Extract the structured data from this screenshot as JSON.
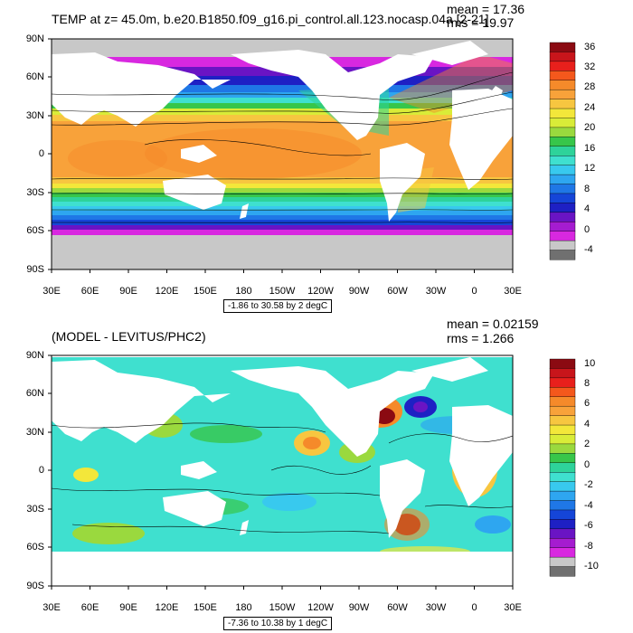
{
  "panels": [
    {
      "title": "TEMP at z=  45.0m, b.e20.B1850.f09_g16.pi_control.all.123.nocasp.04a [2-21]",
      "mean_text": "mean = 17.36",
      "rms_text": "rms = 19.97",
      "range_text": "-1.86 to 30.58 by 2 degC",
      "lat_labels": [
        "90N",
        "60N",
        "30N",
        "0",
        "30S",
        "60S",
        "90S"
      ],
      "lon_labels": [
        "30E",
        "60E",
        "90E",
        "120E",
        "150E",
        "180",
        "150W",
        "120W",
        "90W",
        "60W",
        "30W",
        "0",
        "30E"
      ],
      "colorbar": {
        "labels": [
          "36",
          "32",
          "28",
          "24",
          "20",
          "16",
          "12",
          "8",
          "4",
          "0",
          "-4"
        ],
        "colors": [
          "#8b0a12",
          "#c8151b",
          "#e8201c",
          "#f4581c",
          "#f58a2a",
          "#f8a23a",
          "#f7c640",
          "#f3e73a",
          "#d9ec38",
          "#9ad93e",
          "#37c64a",
          "#2ed39a",
          "#3fe0cf",
          "#38c9ee",
          "#2ea6f0",
          "#1f77e6",
          "#1545d8",
          "#1e20c4",
          "#6a14c4",
          "#a51cd0",
          "#d828e0",
          "#c8c8c8",
          "#707070"
        ]
      }
    },
    {
      "title": "(MODEL - LEVITUS/PHC2)",
      "mean_text": "mean = 0.02159",
      "rms_text": "rms = 1.266",
      "range_text": "-7.36 to 10.38 by 1 degC",
      "lat_labels": [
        "90N",
        "60N",
        "30N",
        "0",
        "30S",
        "60S",
        "90S"
      ],
      "lon_labels": [
        "30E",
        "60E",
        "90E",
        "120E",
        "150E",
        "180",
        "150W",
        "120W",
        "90W",
        "60W",
        "30W",
        "0",
        "30E"
      ],
      "colorbar": {
        "labels": [
          "10",
          "8",
          "6",
          "4",
          "2",
          "0",
          "-2",
          "-4",
          "-6",
          "-8",
          "-10"
        ],
        "colors": [
          "#8b0a12",
          "#c8151b",
          "#e8201c",
          "#f4581c",
          "#f58a2a",
          "#f8a23a",
          "#f7c640",
          "#f3e73a",
          "#d9ec38",
          "#9ad93e",
          "#37c64a",
          "#2ed39a",
          "#3fe0cf",
          "#38c9ee",
          "#2ea6f0",
          "#1f77e6",
          "#1545d8",
          "#1e20c4",
          "#6a14c4",
          "#a51cd0",
          "#d828e0",
          "#c8c8c8",
          "#707070"
        ]
      }
    }
  ]
}
